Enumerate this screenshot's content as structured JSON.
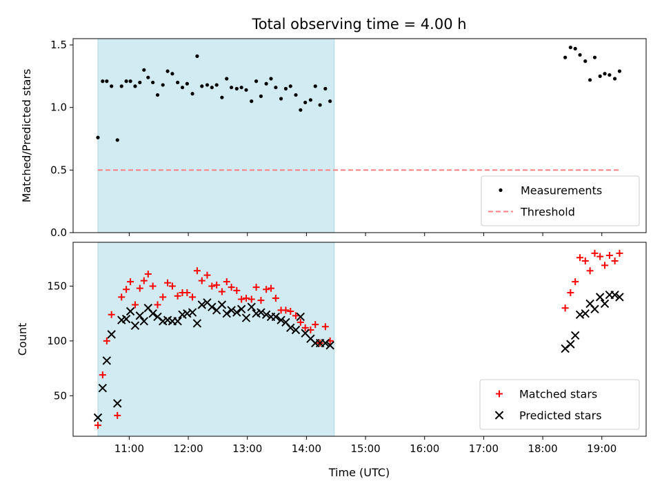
{
  "chart_data": {
    "type": "scatter",
    "title": "Total observing time = 4.00 h",
    "xlabel": "Time (UTC)",
    "x_ticks": [
      "11:00",
      "12:00",
      "13:00",
      "14:00",
      "15:00",
      "16:00",
      "17:00",
      "18:00",
      "19:00"
    ],
    "x_range_hours": [
      10.05,
      19.75
    ],
    "shaded_interval_hours": [
      10.47,
      14.47
    ],
    "shade_color": "#add8e6",
    "panels": [
      {
        "ylabel": "Matched/Predicted stars",
        "ylim": [
          0,
          1.55
        ],
        "yticks": [
          "0.0",
          "0.5",
          "1.0",
          "1.5"
        ],
        "legend_position": "lower right",
        "threshold": {
          "name": "Threshold",
          "value": 0.5,
          "x_start": 10.47,
          "x_end": 19.3,
          "color": "#ff7f7f"
        },
        "series": [
          {
            "name": "Measurements",
            "marker": "dot",
            "color": "#000000",
            "points": [
              [
                10.47,
                0.76
              ],
              [
                10.55,
                1.21
              ],
              [
                10.62,
                1.21
              ],
              [
                10.7,
                1.17
              ],
              [
                10.8,
                0.74
              ],
              [
                10.87,
                1.17
              ],
              [
                10.95,
                1.21
              ],
              [
                11.02,
                1.21
              ],
              [
                11.1,
                1.17
              ],
              [
                11.18,
                1.2
              ],
              [
                11.25,
                1.3
              ],
              [
                11.32,
                1.24
              ],
              [
                11.4,
                1.2
              ],
              [
                11.48,
                1.1
              ],
              [
                11.57,
                1.18
              ],
              [
                11.65,
                1.29
              ],
              [
                11.73,
                1.27
              ],
              [
                11.82,
                1.2
              ],
              [
                11.9,
                1.16
              ],
              [
                11.98,
                1.19
              ],
              [
                12.07,
                1.11
              ],
              [
                12.15,
                1.41
              ],
              [
                12.23,
                1.17
              ],
              [
                12.32,
                1.18
              ],
              [
                12.4,
                1.16
              ],
              [
                12.48,
                1.18
              ],
              [
                12.57,
                1.08
              ],
              [
                12.65,
                1.23
              ],
              [
                12.73,
                1.16
              ],
              [
                12.82,
                1.15
              ],
              [
                12.9,
                1.16
              ],
              [
                12.98,
                1.14
              ],
              [
                13.07,
                1.05
              ],
              [
                13.15,
                1.21
              ],
              [
                13.23,
                1.09
              ],
              [
                13.32,
                1.19
              ],
              [
                13.4,
                1.23
              ],
              [
                13.48,
                1.16
              ],
              [
                13.57,
                1.07
              ],
              [
                13.65,
                1.15
              ],
              [
                13.73,
                1.17
              ],
              [
                13.82,
                1.1
              ],
              [
                13.9,
                0.98
              ],
              [
                13.98,
                1.04
              ],
              [
                14.07,
                1.06
              ],
              [
                14.15,
                1.17
              ],
              [
                14.23,
                1.02
              ],
              [
                14.32,
                1.15
              ],
              [
                14.4,
                1.05
              ],
              [
                18.38,
                1.4
              ],
              [
                18.47,
                1.48
              ],
              [
                18.55,
                1.47
              ],
              [
                18.63,
                1.42
              ],
              [
                18.72,
                1.37
              ],
              [
                18.8,
                1.22
              ],
              [
                18.88,
                1.4
              ],
              [
                18.97,
                1.25
              ],
              [
                19.05,
                1.27
              ],
              [
                19.13,
                1.26
              ],
              [
                19.22,
                1.23
              ],
              [
                19.3,
                1.29
              ]
            ]
          }
        ]
      },
      {
        "ylabel": "Count",
        "ylim": [
          13,
          190
        ],
        "yticks": [
          "50",
          "100",
          "150"
        ],
        "legend_position": "lower right",
        "series": [
          {
            "name": "Matched stars",
            "marker": "plus",
            "color": "#ff0000",
            "points": [
              [
                10.47,
                23
              ],
              [
                10.55,
                69
              ],
              [
                10.62,
                100
              ],
              [
                10.7,
                124
              ],
              [
                10.8,
                32
              ],
              [
                10.87,
                140
              ],
              [
                10.95,
                147
              ],
              [
                11.02,
                154
              ],
              [
                11.1,
                133
              ],
              [
                11.18,
                148
              ],
              [
                11.25,
                155
              ],
              [
                11.32,
                161
              ],
              [
                11.4,
                150
              ],
              [
                11.48,
                133
              ],
              [
                11.57,
                140
              ],
              [
                11.65,
                153
              ],
              [
                11.73,
                150
              ],
              [
                11.82,
                141
              ],
              [
                11.9,
                144
              ],
              [
                11.98,
                144
              ],
              [
                12.07,
                140
              ],
              [
                12.15,
                164
              ],
              [
                12.23,
                155
              ],
              [
                12.32,
                160
              ],
              [
                12.4,
                150
              ],
              [
                12.48,
                151
              ],
              [
                12.57,
                145
              ],
              [
                12.65,
                154
              ],
              [
                12.73,
                149
              ],
              [
                12.82,
                146
              ],
              [
                12.9,
                138
              ],
              [
                12.98,
                139
              ],
              [
                13.07,
                138
              ],
              [
                13.15,
                149
              ],
              [
                13.23,
                137
              ],
              [
                13.32,
                147
              ],
              [
                13.4,
                148
              ],
              [
                13.48,
                139
              ],
              [
                13.57,
                128
              ],
              [
                13.65,
                128
              ],
              [
                13.73,
                127
              ],
              [
                13.82,
                123
              ],
              [
                13.9,
                117
              ],
              [
                13.98,
                112
              ],
              [
                14.07,
                110
              ],
              [
                14.15,
                115
              ],
              [
                14.23,
                98
              ],
              [
                14.32,
                113
              ],
              [
                14.4,
                100
              ],
              [
                18.38,
                130
              ],
              [
                18.47,
                144
              ],
              [
                18.55,
                154
              ],
              [
                18.63,
                176
              ],
              [
                18.72,
                173
              ],
              [
                18.8,
                164
              ],
              [
                18.88,
                180
              ],
              [
                18.97,
                177
              ],
              [
                19.05,
                169
              ],
              [
                19.13,
                178
              ],
              [
                19.22,
                173
              ],
              [
                19.3,
                180
              ]
            ]
          },
          {
            "name": "Predicted stars",
            "marker": "x",
            "color": "#000000",
            "points": [
              [
                10.47,
                30
              ],
              [
                10.55,
                57
              ],
              [
                10.62,
                82
              ],
              [
                10.7,
                106
              ],
              [
                10.8,
                43
              ],
              [
                10.87,
                119
              ],
              [
                10.95,
                120
              ],
              [
                11.02,
                127
              ],
              [
                11.1,
                114
              ],
              [
                11.18,
                123
              ],
              [
                11.25,
                118
              ],
              [
                11.32,
                130
              ],
              [
                11.4,
                125
              ],
              [
                11.48,
                122
              ],
              [
                11.57,
                118
              ],
              [
                11.65,
                119
              ],
              [
                11.73,
                118
              ],
              [
                11.82,
                118
              ],
              [
                11.9,
                124
              ],
              [
                11.98,
                125
              ],
              [
                12.07,
                126
              ],
              [
                12.15,
                116
              ],
              [
                12.23,
                133
              ],
              [
                12.32,
                135
              ],
              [
                12.4,
                131
              ],
              [
                12.48,
                128
              ],
              [
                12.57,
                133
              ],
              [
                12.65,
                125
              ],
              [
                12.73,
                128
              ],
              [
                12.82,
                126
              ],
              [
                12.9,
                129
              ],
              [
                12.98,
                121
              ],
              [
                13.07,
                131
              ],
              [
                13.15,
                125
              ],
              [
                13.23,
                126
              ],
              [
                13.32,
                124
              ],
              [
                13.4,
                122
              ],
              [
                13.48,
                122
              ],
              [
                13.57,
                119
              ],
              [
                13.65,
                117
              ],
              [
                13.73,
                112
              ],
              [
                13.82,
                110
              ],
              [
                13.9,
                122
              ],
              [
                13.98,
                107
              ],
              [
                14.07,
                102
              ],
              [
                14.15,
                98
              ],
              [
                14.23,
                98
              ],
              [
                14.32,
                98
              ],
              [
                14.4,
                96
              ],
              [
                18.38,
                93
              ],
              [
                18.47,
                97
              ],
              [
                18.55,
                105
              ],
              [
                18.63,
                124
              ],
              [
                18.72,
                125
              ],
              [
                18.8,
                134
              ],
              [
                18.88,
                129
              ],
              [
                18.97,
                140
              ],
              [
                19.05,
                134
              ],
              [
                19.13,
                142
              ],
              [
                19.22,
                142
              ],
              [
                19.3,
                140
              ]
            ]
          }
        ]
      }
    ]
  }
}
